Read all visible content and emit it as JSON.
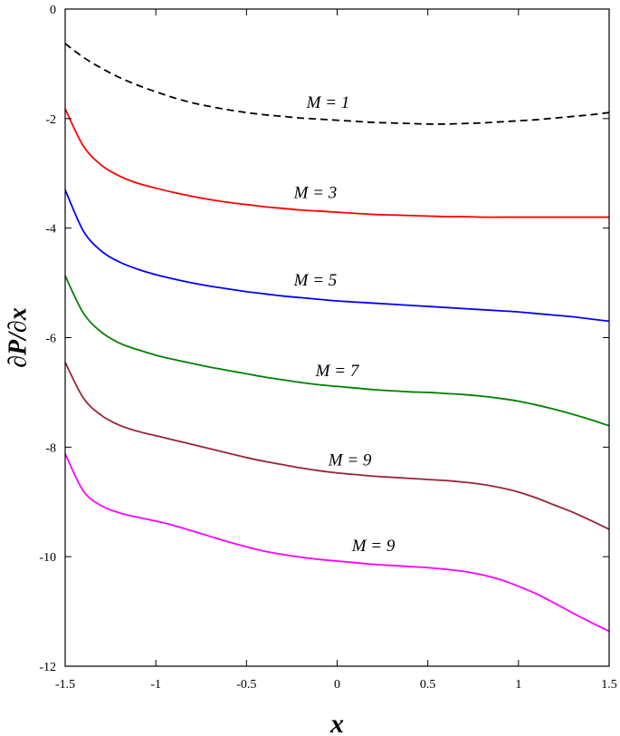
{
  "chart_data": {
    "type": "line",
    "title": "",
    "xlabel": "x",
    "ylabel": "∂P/∂x",
    "xlim": [
      -1.5,
      1.5
    ],
    "ylim": [
      -12,
      0
    ],
    "x_ticks": [
      -1.5,
      -1,
      -0.5,
      0,
      0.5,
      1,
      1.5
    ],
    "x_tick_labels": [
      "-1.5",
      "-1",
      "-0.5",
      "0",
      "0.5",
      "1",
      "1.5"
    ],
    "y_ticks": [
      0,
      -2,
      -4,
      -6,
      -8,
      -10,
      -12
    ],
    "y_tick_labels": [
      "0",
      "-2",
      "-4",
      "-6",
      "-8",
      "-10",
      "-12"
    ],
    "grid": false,
    "x": [
      -1.5,
      -1.4,
      -1.3,
      -1.2,
      -1.1,
      -1.0,
      -0.9,
      -0.8,
      -0.7,
      -0.6,
      -0.5,
      -0.4,
      -0.3,
      -0.2,
      -0.1,
      0.0,
      0.1,
      0.2,
      0.3,
      0.4,
      0.5,
      0.6,
      0.7,
      0.8,
      0.9,
      1.0,
      1.1,
      1.2,
      1.3,
      1.4,
      1.5
    ],
    "series": [
      {
        "name": "M = 1",
        "color": "#000000",
        "dash": true,
        "values": [
          -0.63,
          -0.88,
          -1.08,
          -1.25,
          -1.39,
          -1.51,
          -1.62,
          -1.71,
          -1.78,
          -1.84,
          -1.89,
          -1.93,
          -1.96,
          -1.99,
          -2.01,
          -2.03,
          -2.05,
          -2.07,
          -2.08,
          -2.09,
          -2.1,
          -2.1,
          -2.09,
          -2.08,
          -2.06,
          -2.04,
          -2.02,
          -1.99,
          -1.96,
          -1.93,
          -1.89
        ]
      },
      {
        "name": "M = 3",
        "color": "#ff0000",
        "dash": false,
        "values": [
          -1.82,
          -2.5,
          -2.85,
          -3.05,
          -3.18,
          -3.27,
          -3.35,
          -3.42,
          -3.48,
          -3.53,
          -3.57,
          -3.61,
          -3.64,
          -3.67,
          -3.69,
          -3.71,
          -3.73,
          -3.75,
          -3.76,
          -3.77,
          -3.78,
          -3.79,
          -3.79,
          -3.8,
          -3.8,
          -3.8,
          -3.8,
          -3.8,
          -3.8,
          -3.8,
          -3.8
        ]
      },
      {
        "name": "M = 5",
        "color": "#0000ff",
        "dash": false,
        "values": [
          -3.3,
          -4.05,
          -4.42,
          -4.62,
          -4.75,
          -4.85,
          -4.93,
          -5.0,
          -5.06,
          -5.11,
          -5.16,
          -5.2,
          -5.24,
          -5.27,
          -5.3,
          -5.33,
          -5.35,
          -5.37,
          -5.39,
          -5.41,
          -5.43,
          -5.45,
          -5.47,
          -5.49,
          -5.51,
          -5.53,
          -5.56,
          -5.59,
          -5.62,
          -5.66,
          -5.7
        ]
      },
      {
        "name": "M = 7",
        "color": "#008000",
        "dash": false,
        "values": [
          -4.87,
          -5.55,
          -5.9,
          -6.1,
          -6.22,
          -6.32,
          -6.4,
          -6.47,
          -6.54,
          -6.6,
          -6.66,
          -6.72,
          -6.77,
          -6.82,
          -6.86,
          -6.89,
          -6.92,
          -6.95,
          -6.97,
          -6.99,
          -7.0,
          -7.02,
          -7.04,
          -7.07,
          -7.11,
          -7.16,
          -7.23,
          -7.31,
          -7.4,
          -7.5,
          -7.61
        ]
      },
      {
        "name": "M = 9",
        "color": "#9b2335",
        "dash": false,
        "values": [
          -6.45,
          -7.1,
          -7.42,
          -7.6,
          -7.71,
          -7.79,
          -7.87,
          -7.95,
          -8.03,
          -8.11,
          -8.19,
          -8.26,
          -8.32,
          -8.38,
          -8.43,
          -8.47,
          -8.5,
          -8.53,
          -8.55,
          -8.57,
          -8.59,
          -8.61,
          -8.64,
          -8.68,
          -8.74,
          -8.82,
          -8.93,
          -9.06,
          -9.19,
          -9.34,
          -9.5
        ]
      },
      {
        "name": "M = 9",
        "color": "#ff00ff",
        "dash": false,
        "values": [
          -8.12,
          -8.8,
          -9.07,
          -9.2,
          -9.28,
          -9.35,
          -9.43,
          -9.53,
          -9.63,
          -9.73,
          -9.82,
          -9.9,
          -9.96,
          -10.01,
          -10.05,
          -10.08,
          -10.11,
          -10.14,
          -10.16,
          -10.18,
          -10.2,
          -10.23,
          -10.27,
          -10.33,
          -10.42,
          -10.54,
          -10.68,
          -10.85,
          -11.03,
          -11.2,
          -11.36
        ]
      }
    ],
    "annotations": [
      {
        "text": "M = 1",
        "x": -0.05,
        "y": -1.8
      },
      {
        "text": "M = 3",
        "x": -0.12,
        "y": -3.45
      },
      {
        "text": "M = 5",
        "x": -0.12,
        "y": -5.05
      },
      {
        "text": "M = 7",
        "x": 0.0,
        "y": -6.7
      },
      {
        "text": "M = 9",
        "x": 0.07,
        "y": -8.33
      },
      {
        "text": "M = 9",
        "x": 0.2,
        "y": -9.9
      }
    ]
  }
}
